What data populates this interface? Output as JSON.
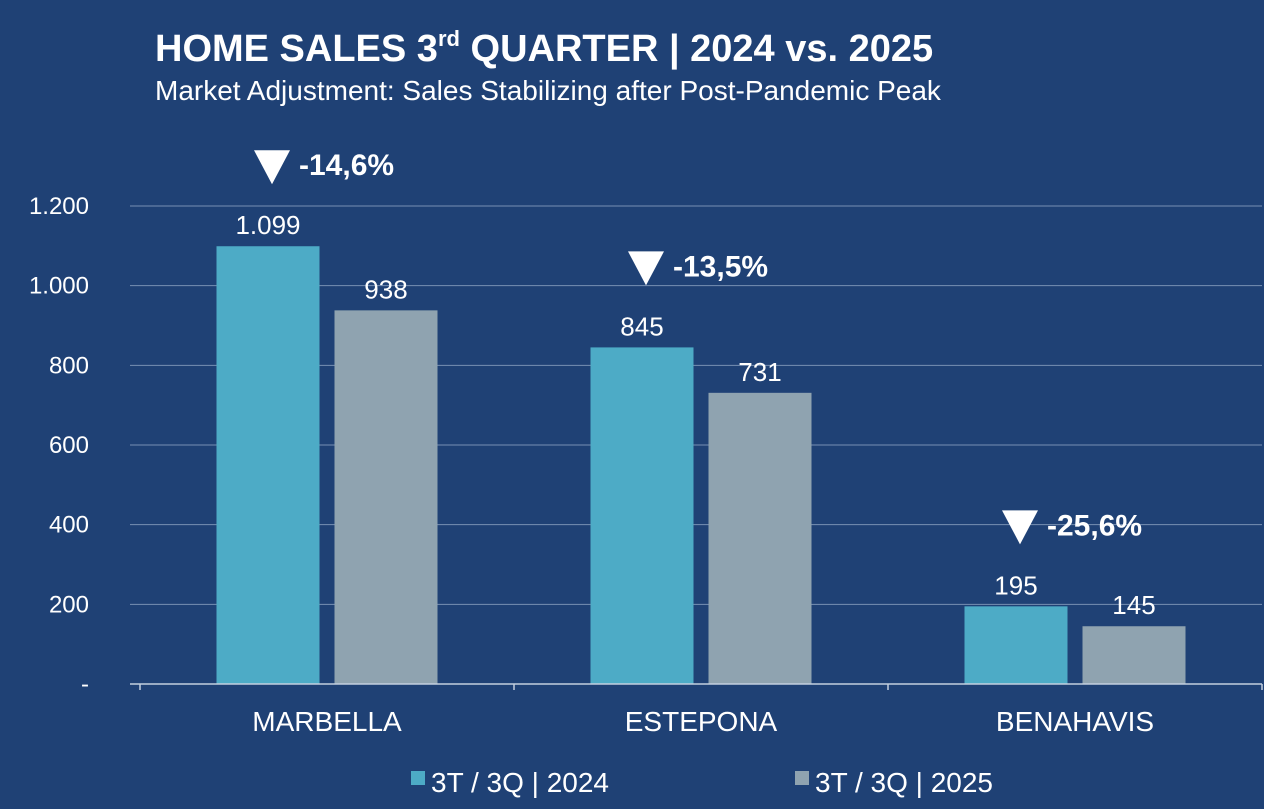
{
  "chart_data": {
    "type": "bar",
    "title": "HOME SALES 3",
    "title_superscript": "rd",
    "title_rest": " QUARTER | 2024 vs. 2025",
    "subtitle": "Market Adjustment: Sales Stabilizing after Post-Pandemic Peak",
    "categories": [
      "MARBELLA",
      "ESTEPONA",
      "BENAHAVIS"
    ],
    "series": [
      {
        "name": "3T / 3Q | 2024",
        "color": "#4dabc6",
        "values": [
          1099,
          845,
          195
        ],
        "labels": [
          "1.099",
          "845",
          "195"
        ]
      },
      {
        "name": "3T / 3Q | 2025",
        "color": "#8fa3b0",
        "values": [
          938,
          731,
          145
        ],
        "labels": [
          "938",
          "731",
          "145"
        ]
      }
    ],
    "changes": [
      "-14,6%",
      "-13,5%",
      "-25,6%"
    ],
    "change_icon": "down-triangle-icon",
    "y_ticks": [
      0,
      200,
      400,
      600,
      800,
      1000,
      1200
    ],
    "y_tick_labels": [
      "-",
      "200",
      "400",
      "600",
      "800",
      "1.000",
      "1.200"
    ],
    "ylim": [
      0,
      1200
    ],
    "xlabel": "",
    "ylabel": "",
    "grid": true,
    "legend_position": "bottom-center"
  }
}
